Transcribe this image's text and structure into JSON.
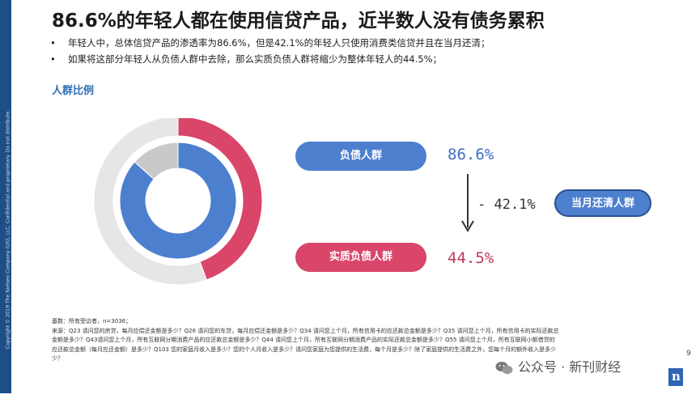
{
  "side_text": "Copyright © 2019 The Nielsen Company (US), LLC. Confidential and proprietary. Do not distribute.",
  "title": "86.6%的年轻人都在使用信贷产品，近半数人没有债务累积",
  "bullets": [
    "年轻人中，总体信贷产品的渗透率为86.6%，但是42.1%的年轻人只使用消费类信贷并且在当月还清；",
    "如果将这部分年轻人从负债人群中去除，那么实质负债人群将缩少为整体年轻人的44.5%；"
  ],
  "section_label": "人群比例",
  "pills": {
    "debt": "负债人群",
    "real": "实质负债人群",
    "clear": "当月还清人群"
  },
  "values": {
    "debt": "86.6%",
    "diff": "- 42.1%",
    "real": "44.5%"
  },
  "chart_data": {
    "type": "pie",
    "rings": [
      {
        "ring": "outer",
        "slices": [
          {
            "label": "实质负债人群",
            "value": 44.5,
            "color": "#d9466a"
          },
          {
            "label": "",
            "value": 55.5,
            "color": "#e6e6e6"
          }
        ]
      },
      {
        "ring": "inner",
        "slices": [
          {
            "label": "负债人群",
            "value": 86.6,
            "color": "#4d7fcf"
          },
          {
            "label": "",
            "value": 13.4,
            "color": "#c9c9c9"
          }
        ]
      }
    ],
    "colors": {
      "real": "#d9466a",
      "debt": "#4d7fcf",
      "rest_outer": "#e6e6e6",
      "rest_inner": "#c9c9c9"
    }
  },
  "footnote": [
    "基数：所有受访者，n=3036；",
    "来源：Q23 请问您的房贷，每月应偿还金额是多少？Q26 请问您的车贷，每月应偿还金额是多少？Q34 请问您上个月，所有信用卡的应还款总金额是多少？Q35 请问您上个月，所有信用卡的实际还款总",
    "金额是多少？Q43请问您上个月，所有互联网分期消费产品的应还款总金额是多少？Q44 请问您上个月，所有互联网分期消费产品的实际还款总金额是多少？Q55 请问您上个月，所有互联网小额借贷的",
    "应还款总金额（每月应还金额）是多少？Q103 您的家庭月收入是多少？您的个人月收入是多少？请问您家庭为您提供的生活费，每个月是多少？除了家庭提供的生活费之外，您每个月的额外收入是多少",
    "少？"
  ],
  "page_number": "9",
  "watermark": "公众号 · 新刊财经",
  "logo_letter": "n"
}
